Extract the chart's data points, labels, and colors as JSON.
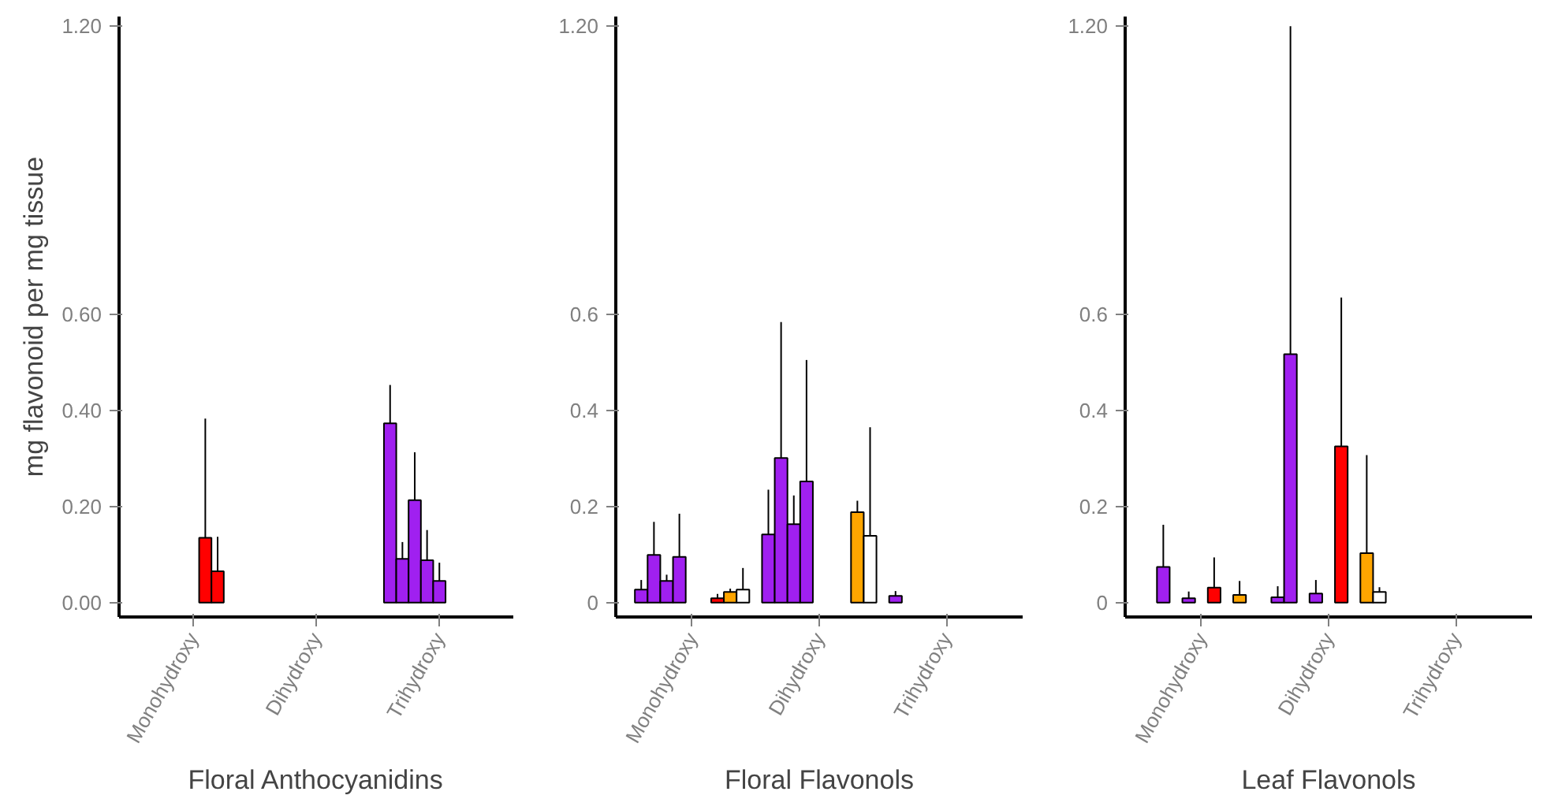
{
  "chart_data": [
    {
      "type": "bar",
      "categories": [
        "Monohydroxy",
        "Dihydroxy",
        "Trihydroxy"
      ],
      "xlabel": "Floral Anthocyanidins",
      "ylabel": "mg flavonoid per mg tissue",
      "ylim": [
        -0.03,
        1.22
      ],
      "yticks": [
        {
          "value": 0,
          "label": "0.00"
        },
        {
          "value": 0.2,
          "label": "0.20"
        },
        {
          "value": 0.4,
          "label": "0.40"
        },
        {
          "value": 0.6,
          "label": "0.60"
        },
        {
          "value": 1.2,
          "label": "1.20"
        }
      ],
      "grid": false,
      "series": [
        {
          "color": "#a020f0",
          "values": [
            null,
            null,
            0.373
          ],
          "errors": [
            null,
            null,
            [
              0.373,
              0.453
            ]
          ]
        },
        {
          "color": "#a020f0",
          "values": [
            null,
            null,
            0.091
          ],
          "errors": [
            null,
            null,
            [
              0.091,
              0.126
            ]
          ]
        },
        {
          "color": "#a020f0",
          "values": [
            null,
            null,
            0.213
          ],
          "errors": [
            null,
            null,
            [
              0.213,
              0.313
            ]
          ]
        },
        {
          "color": "#a020f0",
          "values": [
            null,
            null,
            0.088
          ],
          "errors": [
            null,
            null,
            [
              0.088,
              0.151
            ]
          ]
        },
        {
          "color": "#a020f0",
          "values": [
            null,
            null,
            0.045
          ],
          "errors": [
            null,
            null,
            [
              0.045,
              0.083
            ]
          ]
        },
        {
          "color": "#ff0000",
          "values": [
            0.135,
            null,
            null
          ],
          "errors": [
            [
              0.135,
              0.383
            ],
            null,
            null
          ]
        },
        {
          "color": "#ff0000",
          "values": [
            0.065,
            null,
            null
          ],
          "errors": [
            [
              0.065,
              0.137
            ],
            null,
            null
          ]
        }
      ]
    },
    {
      "type": "bar",
      "categories": [
        "Monohydroxy",
        "Dihydroxy",
        "Trihydroxy"
      ],
      "xlabel": "Floral Flavonols",
      "ylim": [
        -0.03,
        1.22
      ],
      "yticks": [
        0,
        0.2,
        0.4,
        0.6,
        {
          "value": 1.2,
          "label": "1.20"
        }
      ],
      "grid": false,
      "series": [
        {
          "color": "#a020f0",
          "values": [
            0.027,
            0.142,
            0.014
          ],
          "errors": [
            [
              0.027,
              0.047
            ],
            [
              0.142,
              0.235
            ],
            [
              0.014,
              0.024
            ]
          ]
        },
        {
          "color": "#a020f0",
          "values": [
            0.099,
            0.301,
            null
          ],
          "errors": [
            [
              0.099,
              0.168
            ],
            [
              0.301,
              0.584
            ],
            null
          ]
        },
        {
          "color": "#a020f0",
          "values": [
            0.045,
            0.163,
            null
          ],
          "errors": [
            [
              0.045,
              0.058
            ],
            [
              0.163,
              0.223
            ],
            null
          ]
        },
        {
          "color": "#a020f0",
          "values": [
            0.095,
            0.252,
            null
          ],
          "errors": [
            [
              0.095,
              0.185
            ],
            [
              0.252,
              0.505
            ],
            null
          ]
        },
        {
          "color": "#a020f0",
          "values": [
            null,
            null,
            null
          ]
        },
        {
          "color": "#ff0000",
          "values": [
            null,
            null,
            null
          ]
        },
        {
          "color": "#ff0000",
          "values": [
            0.009,
            null,
            null
          ],
          "errors": [
            [
              0.009,
              0.018
            ],
            null,
            null
          ]
        },
        {
          "color": "#ffa500",
          "values": [
            0.022,
            0.188,
            null
          ],
          "errors": [
            [
              0.022,
              0.029
            ],
            [
              0.188,
              0.212
            ],
            null
          ]
        },
        {
          "color": "#ffffff",
          "values": [
            0.027,
            0.139,
            null
          ],
          "errors": [
            [
              0.027,
              0.072
            ],
            [
              0.139,
              0.365
            ],
            null
          ]
        }
      ]
    },
    {
      "type": "bar",
      "categories": [
        "Monohydroxy",
        "Dihydroxy",
        "Trihydroxy"
      ],
      "xlabel": "Leaf Flavonols",
      "ylim": [
        -0.03,
        1.22
      ],
      "yticks": [
        0,
        0.2,
        0.4,
        0.6,
        {
          "value": 1.2,
          "label": "1.20"
        }
      ],
      "grid": false,
      "series": [
        {
          "color": "#a020f0",
          "values": [
            null,
            0.011,
            null
          ],
          "errors": [
            null,
            [
              0.011,
              0.034
            ],
            null
          ]
        },
        {
          "color": "#a020f0",
          "values": [
            0.074,
            0.517,
            null
          ],
          "errors": [
            [
              0.074,
              0.162
            ],
            [
              0.517,
              1.2
            ],
            null
          ]
        },
        {
          "color": "#a020f0",
          "values": [
            null,
            null,
            null
          ]
        },
        {
          "color": "#a020f0",
          "values": [
            0.009,
            0.019,
            null
          ],
          "errors": [
            [
              0.009,
              0.023
            ],
            [
              0.019,
              0.047
            ],
            null
          ]
        },
        {
          "color": "#a020f0",
          "values": [
            null,
            null,
            null
          ]
        },
        {
          "color": "#ff0000",
          "values": [
            0.031,
            0.325,
            null
          ],
          "errors": [
            [
              0.031,
              0.094
            ],
            [
              0.325,
              0.635
            ],
            null
          ]
        },
        {
          "color": "#ff0000",
          "values": [
            null,
            null,
            null
          ]
        },
        {
          "color": "#ffa500",
          "values": [
            0.016,
            0.103,
            null
          ],
          "errors": [
            [
              0.016,
              0.045
            ],
            [
              0.103,
              0.307
            ],
            null
          ]
        },
        {
          "color": "#ffffff",
          "values": [
            null,
            0.022,
            null
          ],
          "errors": [
            null,
            [
              0.022,
              0.032
            ],
            null
          ]
        }
      ]
    }
  ]
}
